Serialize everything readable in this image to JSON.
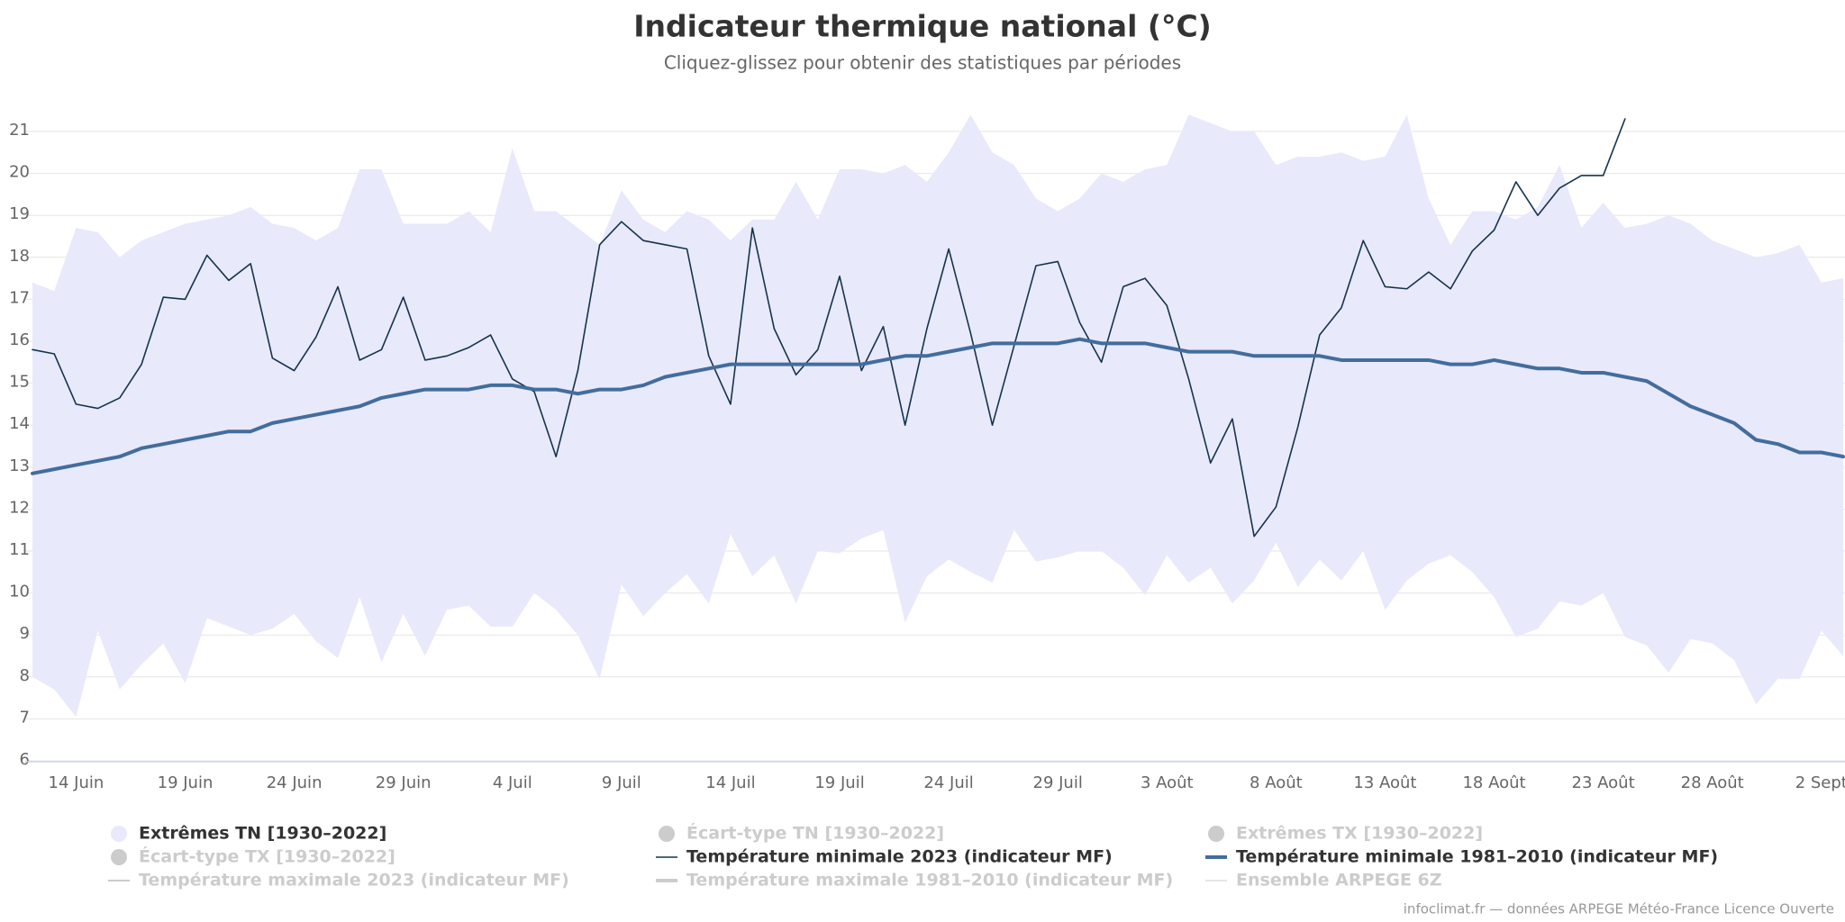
{
  "chart_data": {
    "type": "line",
    "title": "Indicateur thermique national (°C)",
    "subtitle": "Cliquez-glissez pour obtenir des statistiques par périodes",
    "credits": "infoclimat.fr — données ARPEGE Météo-France Licence Ouverte",
    "categories": [
      null,
      null,
      "14 Juin",
      null,
      null,
      null,
      null,
      "19 Juin",
      null,
      null,
      null,
      null,
      "24 Juin",
      null,
      null,
      null,
      null,
      "29 Juin",
      null,
      null,
      null,
      null,
      "4 Juil",
      null,
      null,
      null,
      null,
      "9 Juil",
      null,
      null,
      null,
      null,
      "14 Juil",
      null,
      null,
      null,
      null,
      "19 Juil",
      null,
      null,
      null,
      null,
      "24 Juil",
      null,
      null,
      null,
      null,
      "29 Juil",
      null,
      null,
      null,
      null,
      "3 Août",
      null,
      null,
      null,
      null,
      "8 Août",
      null,
      null,
      null,
      null,
      "13 Août",
      null,
      null,
      null,
      null,
      "18 Août",
      null,
      null,
      null,
      null,
      "23 Août",
      null,
      null,
      null,
      null,
      "28 Août",
      null,
      null,
      null,
      null,
      "2 Sept",
      null
    ],
    "ylim": [
      6,
      21
    ],
    "yticks": [
      6,
      7,
      8,
      9,
      10,
      11,
      12,
      13,
      14,
      15,
      16,
      17,
      18,
      19,
      20,
      21
    ],
    "grid": true,
    "series": [
      {
        "name": "Extrêmes TN [1930–2022]",
        "type": "arearange",
        "color": "#e9e9fc",
        "visible": true,
        "legend_symbol": "circle",
        "high": [
          17.4,
          17.2,
          18.7,
          18.6,
          18.0,
          18.4,
          18.6,
          18.8,
          18.9,
          19.0,
          19.2,
          18.8,
          18.7,
          18.4,
          18.7,
          20.1,
          20.1,
          18.8,
          18.8,
          18.8,
          19.1,
          18.6,
          20.6,
          19.1,
          19.1,
          18.7,
          18.3,
          19.6,
          18.9,
          18.6,
          19.1,
          18.9,
          18.4,
          18.9,
          18.9,
          19.8,
          18.9,
          20.1,
          20.1,
          20.0,
          20.2,
          19.8,
          20.5,
          21.4,
          20.5,
          20.2,
          19.4,
          19.1,
          19.4,
          20.0,
          19.8,
          20.1,
          20.2,
          21.4,
          21.2,
          21.0,
          21.0,
          20.2,
          20.4,
          20.4,
          20.5,
          20.3,
          20.4,
          21.4,
          19.4,
          18.3,
          19.1,
          19.1,
          18.9,
          19.2,
          20.2,
          18.7,
          19.3,
          18.7,
          18.8,
          19.0,
          18.8,
          18.4,
          18.2,
          18.0,
          18.1,
          18.3,
          17.4,
          17.5
        ],
        "low": [
          8.0,
          7.7,
          7.05,
          9.1,
          7.7,
          8.3,
          8.8,
          7.85,
          9.4,
          9.2,
          9.0,
          9.15,
          9.5,
          8.85,
          8.45,
          9.9,
          8.35,
          9.5,
          8.5,
          9.6,
          9.7,
          9.2,
          9.2,
          10.0,
          9.6,
          9.0,
          7.95,
          10.2,
          9.45,
          10.0,
          10.45,
          9.75,
          11.4,
          10.4,
          10.9,
          9.75,
          11.0,
          10.95,
          11.3,
          11.5,
          9.3,
          10.4,
          10.8,
          10.5,
          10.25,
          11.5,
          10.75,
          10.85,
          11.0,
          11.0,
          10.6,
          9.95,
          10.9,
          10.25,
          10.6,
          9.75,
          10.3,
          11.2,
          10.15,
          10.8,
          10.3,
          11.0,
          9.6,
          10.3,
          10.7,
          10.9,
          10.5,
          9.9,
          8.95,
          9.15,
          9.8,
          9.7,
          10.0,
          8.95,
          8.75,
          8.1,
          8.9,
          8.8,
          8.4,
          7.35,
          7.95,
          7.95,
          9.1,
          8.5
        ]
      },
      {
        "name": "Écart-type TN [1930–2022]",
        "visible": false,
        "legend_symbol": "circle"
      },
      {
        "name": "Extrêmes TX [1930–2022]",
        "visible": false,
        "legend_symbol": "circle"
      },
      {
        "name": "Écart-type TX [1930–2022]",
        "visible": false,
        "legend_symbol": "circle"
      },
      {
        "name": "Température minimale 2023 (indicateur MF)",
        "type": "line",
        "color": "#14344b",
        "line_width": 1.6,
        "visible": true,
        "legend_symbol": "line",
        "values": [
          15.8,
          15.7,
          14.5,
          14.4,
          14.65,
          15.45,
          17.05,
          17.0,
          18.05,
          17.45,
          17.85,
          15.6,
          15.3,
          16.1,
          17.3,
          15.55,
          15.8,
          17.05,
          15.55,
          15.65,
          15.85,
          16.15,
          15.1,
          14.8,
          13.25,
          15.3,
          18.3,
          18.85,
          18.4,
          18.3,
          18.2,
          15.65,
          14.5,
          18.7,
          16.3,
          15.2,
          15.8,
          17.55,
          15.3,
          16.35,
          14.0,
          16.3,
          18.2,
          16.2,
          14.0,
          15.9,
          17.8,
          17.9,
          16.45,
          15.5,
          17.3,
          17.5,
          16.85,
          15.1,
          13.1,
          14.15,
          11.35,
          12.05,
          13.95,
          16.15,
          16.8,
          18.4,
          17.3,
          17.25,
          17.65,
          17.25,
          18.15,
          18.65,
          19.8,
          19.0,
          19.65,
          19.95,
          19.95,
          21.3,
          null,
          null,
          null,
          null,
          null,
          null,
          null,
          null,
          null,
          null
        ]
      },
      {
        "name": "Température minimale 1981–2010 (indicateur MF)",
        "type": "line",
        "color": "#426d9d",
        "line_width": 4,
        "visible": true,
        "legend_symbol": "line",
        "values": [
          12.85,
          12.95,
          13.05,
          13.15,
          13.25,
          13.45,
          13.55,
          13.65,
          13.75,
          13.85,
          13.85,
          14.05,
          14.15,
          14.25,
          14.35,
          14.45,
          14.65,
          14.75,
          14.85,
          14.85,
          14.85,
          14.95,
          14.95,
          14.85,
          14.85,
          14.75,
          14.85,
          14.85,
          14.95,
          15.15,
          15.25,
          15.35,
          15.45,
          15.45,
          15.45,
          15.45,
          15.45,
          15.45,
          15.45,
          15.55,
          15.65,
          15.65,
          15.75,
          15.85,
          15.95,
          15.95,
          15.95,
          15.95,
          16.05,
          15.95,
          15.95,
          15.95,
          15.85,
          15.75,
          15.75,
          15.75,
          15.65,
          15.65,
          15.65,
          15.65,
          15.55,
          15.55,
          15.55,
          15.55,
          15.55,
          15.45,
          15.45,
          15.55,
          15.45,
          15.35,
          15.35,
          15.25,
          15.25,
          15.15,
          15.05,
          14.75,
          14.45,
          14.25,
          14.05,
          13.65,
          13.55,
          13.35,
          13.35,
          13.25
        ]
      },
      {
        "name": "Température maximale 2023 (indicateur MF)",
        "visible": false,
        "legend_symbol": "line"
      },
      {
        "name": "Température maximale 1981–2010 (indicateur MF)",
        "visible": false,
        "legend_symbol": "thickline"
      },
      {
        "name": "Ensemble ARPEGE 6Z",
        "visible": false,
        "legend_symbol": "thinline"
      }
    ]
  }
}
